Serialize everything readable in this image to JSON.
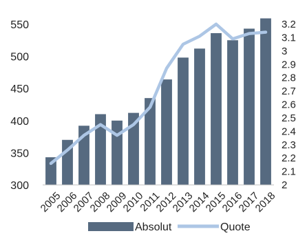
{
  "chart_data": {
    "type": "bar",
    "categories": [
      "2005",
      "2006",
      "2007",
      "2008",
      "2009",
      "2010",
      "2011",
      "2012",
      "2013",
      "2014",
      "2015",
      "2016",
      "2017",
      "2018"
    ],
    "series": [
      {
        "name": "Absolut",
        "type": "bar",
        "axis": "left",
        "color": "#566a80",
        "values": [
          343,
          370,
          392,
          410,
          400,
          412,
          435,
          464,
          498,
          512,
          536,
          525,
          543,
          559
        ]
      },
      {
        "name": "Quote",
        "type": "line",
        "axis": "right",
        "color": "#adc6e5",
        "values": [
          2.16,
          2.26,
          2.37,
          2.45,
          2.37,
          2.45,
          2.58,
          2.87,
          3.05,
          3.11,
          3.2,
          3.09,
          3.13,
          3.14
        ]
      }
    ],
    "y_left": {
      "min": 300,
      "max": 550,
      "ticks": [
        "300",
        "350",
        "400",
        "450",
        "500",
        "550"
      ]
    },
    "y_right": {
      "min": 2,
      "max": 3.2,
      "ticks": [
        "2",
        "2.1",
        "2.2",
        "2.3",
        "2.4",
        "2.5",
        "2.6",
        "2.7",
        "2.8",
        "2.9",
        "3",
        "3.1",
        "3.2"
      ]
    },
    "grid": false,
    "legend_position": "bottom"
  }
}
